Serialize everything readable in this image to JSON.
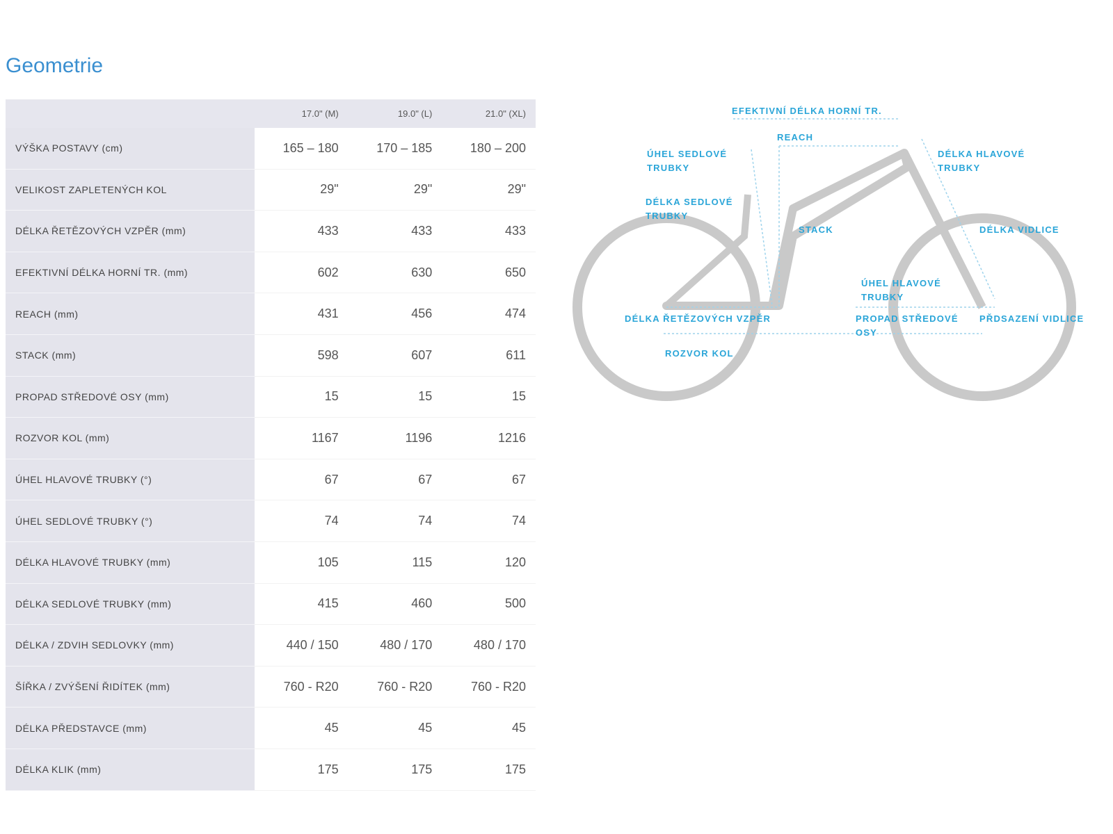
{
  "header": {
    "title": "Geometrie"
  },
  "table": {
    "headers": [
      "17.0\" (M)",
      "19.0\" (L)",
      "21.0\" (XL)"
    ],
    "rows": [
      {
        "label": "VÝŠKA POSTAVY (cm)",
        "values": [
          "165 – 180",
          "170 – 185",
          "180 – 200"
        ]
      },
      {
        "label": "VELIKOST ZAPLETENÝCH KOL",
        "values": [
          "29\"",
          "29\"",
          "29\""
        ]
      },
      {
        "label": "DÉLKA ŘETĚZOVÝCH VZPĚR (mm)",
        "values": [
          433,
          433,
          433
        ]
      },
      {
        "label": "EFEKTIVNÍ DÉLKA HORNÍ TR. (mm)",
        "values": [
          602,
          630,
          650
        ]
      },
      {
        "label": "REACH (mm)",
        "values": [
          431,
          456,
          474
        ]
      },
      {
        "label": "STACK (mm)",
        "values": [
          598,
          607,
          611
        ]
      },
      {
        "label": "PROPAD STŘEDOVÉ OSY (mm)",
        "values": [
          15,
          15,
          15
        ]
      },
      {
        "label": "ROZVOR KOL (mm)",
        "values": [
          1167,
          1196,
          1216
        ]
      },
      {
        "label": "ÚHEL HLAVOVÉ TRUBKY (°)",
        "values": [
          67,
          67,
          67
        ]
      },
      {
        "label": "ÚHEL SEDLOVÉ TRUBKY (°)",
        "values": [
          74,
          74,
          74
        ]
      },
      {
        "label": "DÉLKA HLAVOVÉ TRUBKY (mm)",
        "values": [
          105,
          115,
          120
        ]
      },
      {
        "label": "DÉLKA SEDLOVÉ TRUBKY (mm)",
        "values": [
          415,
          460,
          500
        ]
      },
      {
        "label": "DÉLKA / ZDVIH SEDLOVKY (mm)",
        "values": [
          "440 / 150",
          "480 / 170",
          "480 / 170"
        ]
      },
      {
        "label": "ŠÍŘKA / ZVÝŠENÍ ŘIDÍTEK (mm)",
        "values": [
          "760 - R20",
          "760 - R20",
          "760 - R20"
        ]
      },
      {
        "label": "DÉLKA PŘEDSTAVCE (mm)",
        "values": [
          45,
          45,
          45
        ]
      },
      {
        "label": "DÉLKA KLIK (mm)",
        "values": [
          175,
          175,
          175
        ]
      }
    ]
  },
  "diagram": {
    "labels": [
      "EFEKTIVNÍ DÉLKA HORNÍ TR.",
      "REACH",
      "ÚHEL SEDLOVÉ TRUBKY",
      "DÉLKA HLAVOVÉ TRUBKY",
      "DÉLKA SEDLOVÉ TRUBKY",
      "STACK",
      "DÉLKA VIDLICE",
      "ÚHEL HLAVOVÉ TRUBKY",
      "DÉLKA ŘETĚZOVÝCH VZPĚR",
      "PROPAD STŘEDOVÉ OSY",
      "PŘDSAZENÍ VIDLICE",
      "ROZVOR KOL"
    ]
  }
}
